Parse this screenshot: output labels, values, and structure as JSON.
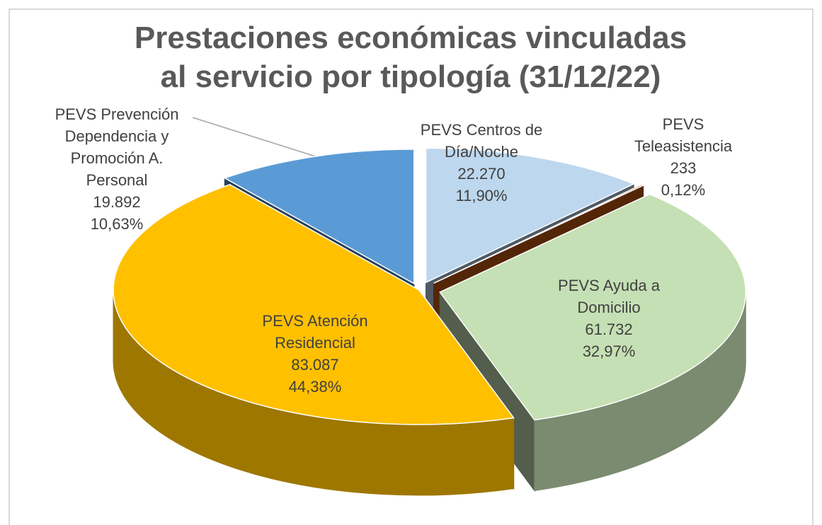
{
  "chart_data": {
    "type": "pie",
    "title": "Prestaciones económicas vinculadas al servicio por tipología (31/12/22)",
    "categories": [
      "PEVS Centros de Día/Noche",
      "PEVS Teleasistencia",
      "PEVS Ayuda a Domicilio",
      "PEVS Atención Residencial",
      "PEVS Prevención Dependencia y Promoción A. Personal"
    ],
    "values": [
      22270,
      233,
      61732,
      83087,
      19892
    ],
    "value_labels": [
      "22.270",
      "233",
      "61.732",
      "83.087",
      "19.892"
    ],
    "percent_values": [
      11.9,
      0.12,
      32.97,
      44.38,
      10.63
    ],
    "percent_labels": [
      "11,90%",
      "0,12%",
      "32,97%",
      "44,38%",
      "10,63%"
    ],
    "colors": [
      "#bdd7ee",
      "#c55a11",
      "#c5e0b4",
      "#ffc000",
      "#5b9bd5"
    ]
  }
}
